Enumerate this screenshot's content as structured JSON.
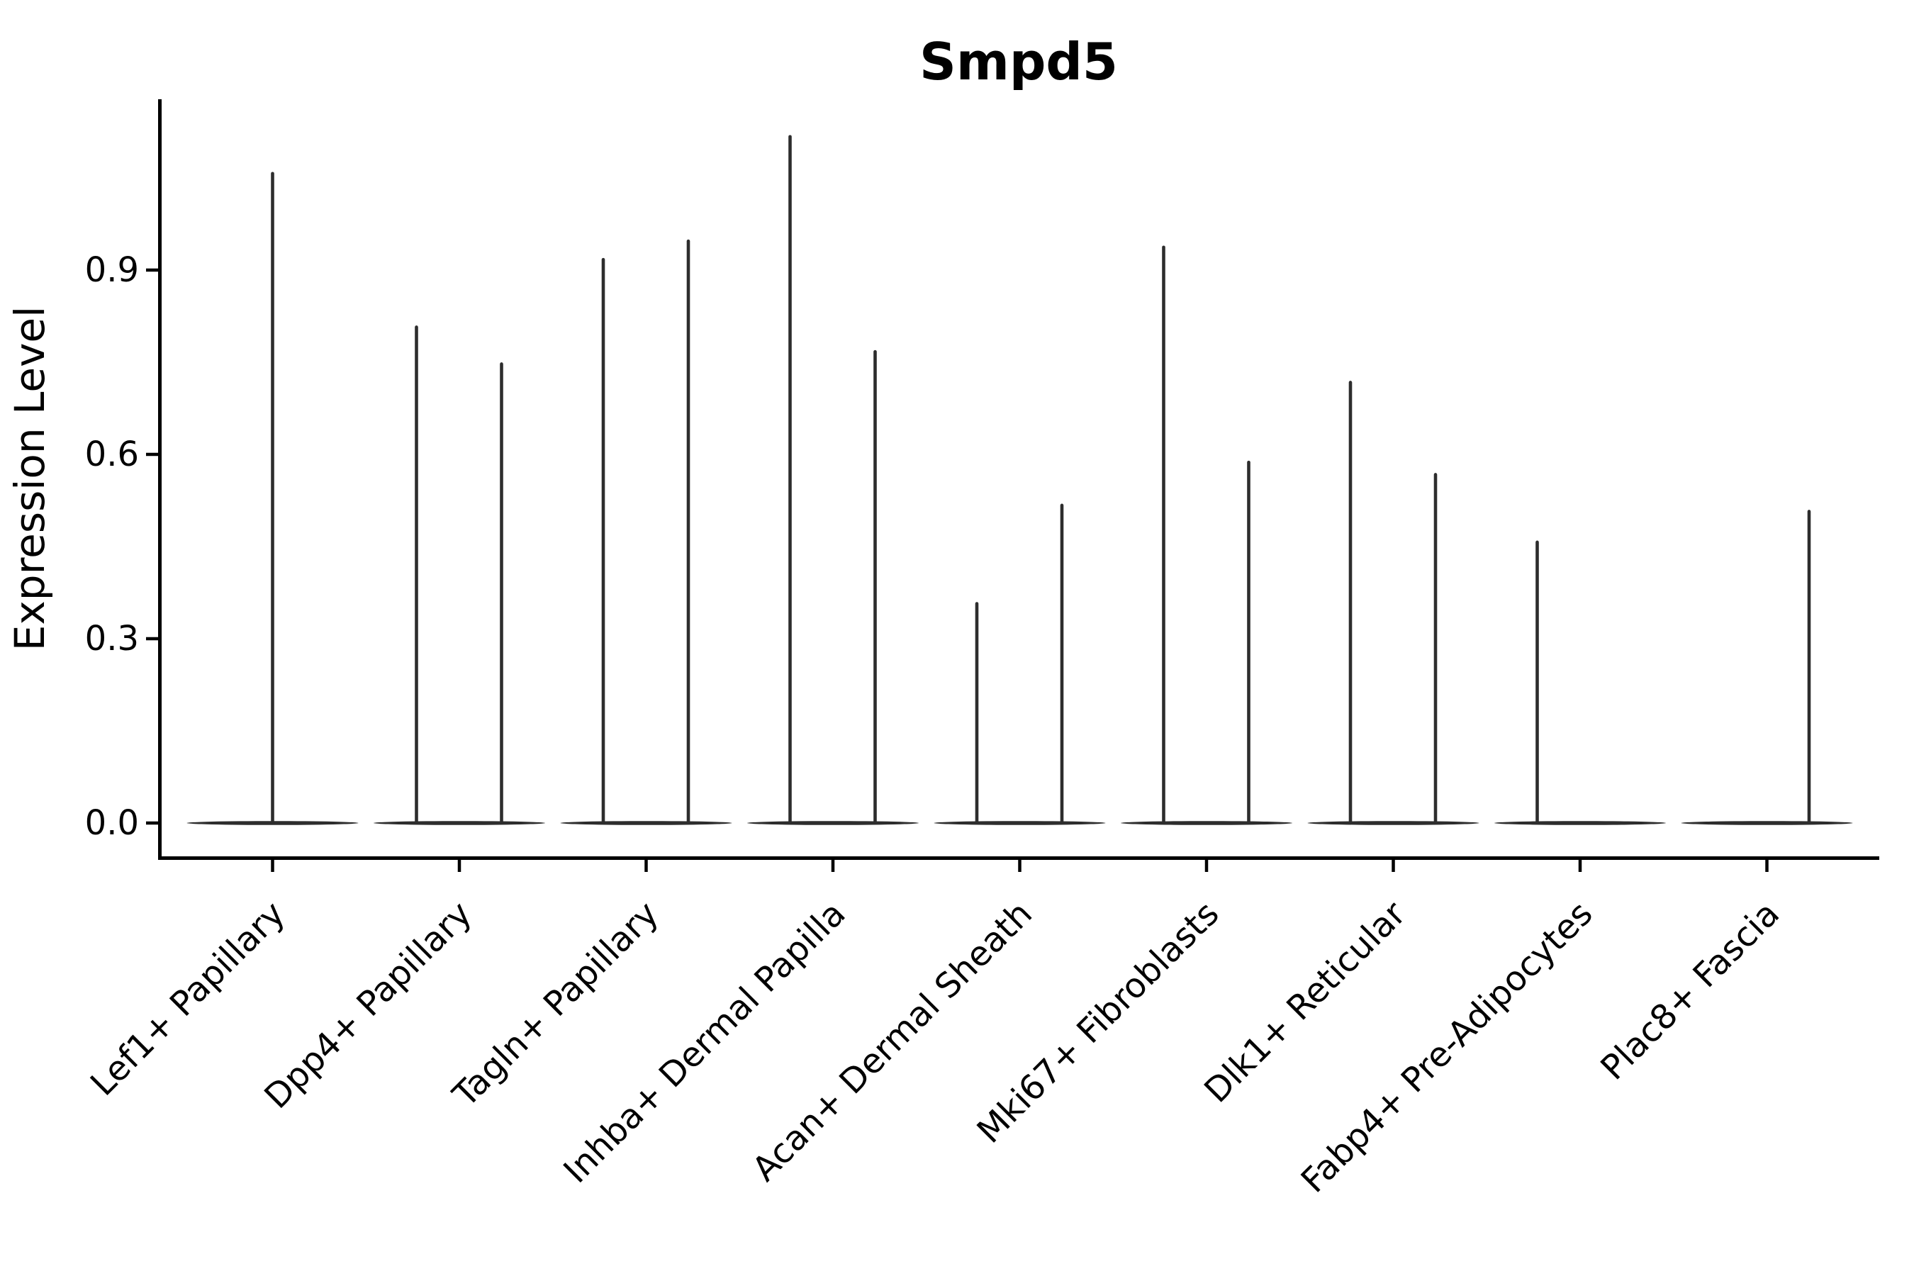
{
  "chart_data": {
    "type": "violin",
    "title": "Smpd5",
    "ylabel": "Expression Level",
    "xlabel": "",
    "grid": false,
    "legend": "none",
    "background": "#ffffff",
    "violin_color": "#2d2d2d",
    "axis_color": "#000000",
    "ylim": [
      0.0,
      1.18
    ],
    "yticks": [
      {
        "label": "0.0",
        "value": 0.0
      },
      {
        "label": "0.3",
        "value": 0.3
      },
      {
        "label": "0.6",
        "value": 0.6
      },
      {
        "label": "0.9",
        "value": 0.9
      }
    ],
    "categories": [
      "Lef1+ Papillary",
      "Dpp4+ Papillary",
      "Tagln+ Papillary",
      "Inhba+ Dermal Papilla",
      "Acan+ Dermal Sheath",
      "Mki67+ Fibroblasts",
      "Dlk1+ Reticular",
      "Fabp4+ Pre-Adipocytes",
      "Plac8+ Fascia"
    ],
    "violins": [
      {
        "category": "Lef1+ Papillary",
        "base_min": 0.0,
        "spikes": [
          {
            "slot": "center",
            "max": 1.06
          }
        ]
      },
      {
        "category": "Dpp4+ Papillary",
        "base_min": 0.0,
        "spikes": [
          {
            "slot": "left",
            "max": 0.81
          },
          {
            "slot": "right",
            "max": 0.75
          }
        ]
      },
      {
        "category": "Tagln+ Papillary",
        "base_min": 0.0,
        "spikes": [
          {
            "slot": "left",
            "max": 0.92
          },
          {
            "slot": "right",
            "max": 0.95
          }
        ]
      },
      {
        "category": "Inhba+ Dermal Papilla",
        "base_min": 0.0,
        "spikes": [
          {
            "slot": "left",
            "max": 1.12
          },
          {
            "slot": "right",
            "max": 0.77
          }
        ]
      },
      {
        "category": "Acan+ Dermal Sheath",
        "base_min": 0.0,
        "spikes": [
          {
            "slot": "left",
            "max": 0.36
          },
          {
            "slot": "right",
            "max": 0.52
          }
        ]
      },
      {
        "category": "Mki67+ Fibroblasts",
        "base_min": 0.0,
        "spikes": [
          {
            "slot": "left",
            "max": 0.94
          },
          {
            "slot": "right",
            "max": 0.59
          }
        ]
      },
      {
        "category": "Dlk1+ Reticular",
        "base_min": 0.0,
        "spikes": [
          {
            "slot": "left",
            "max": 0.72
          },
          {
            "slot": "right",
            "max": 0.57
          }
        ]
      },
      {
        "category": "Fabp4+ Pre-Adipocytes",
        "base_min": 0.0,
        "spikes": [
          {
            "slot": "left",
            "max": 0.46
          }
        ]
      },
      {
        "category": "Plac8+ Fascia",
        "base_min": 0.0,
        "spikes": [
          {
            "slot": "right",
            "max": 0.51
          }
        ]
      }
    ]
  }
}
